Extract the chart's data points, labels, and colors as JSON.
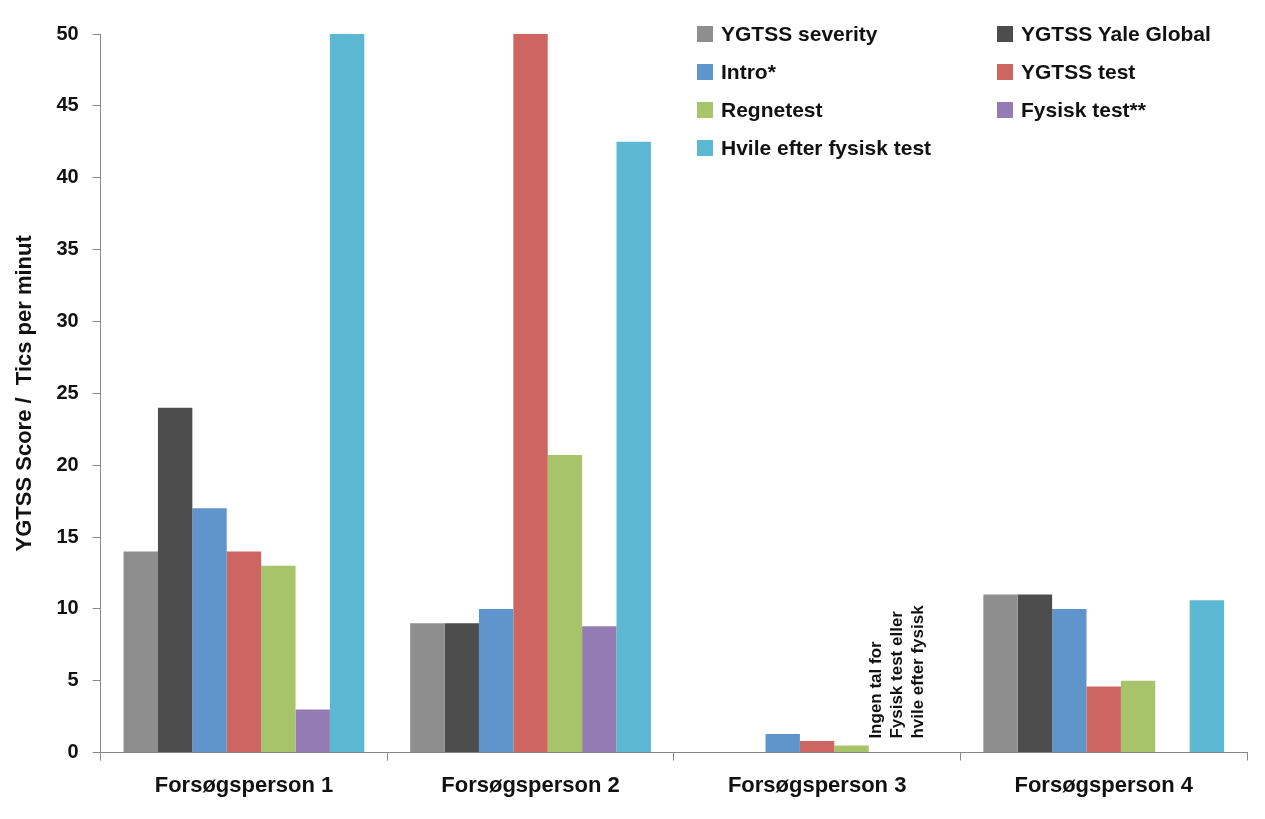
{
  "chart_data": {
    "type": "bar",
    "ylabel": "YGTSS Score /  Tics per minut",
    "categories": [
      "Forsøgsperson 1",
      "Forsøgsperson 2",
      "Forsøgsperson 3",
      "Forsøgsperson 4"
    ],
    "series": [
      {
        "name": "YGTSS severity",
        "color": "#8e8e8e",
        "values": [
          14,
          9,
          null,
          11
        ]
      },
      {
        "name": "YGTSS Yale Global",
        "color": "#4d4d4d",
        "values": [
          24,
          9,
          null,
          11
        ]
      },
      {
        "name": "Intro*",
        "color": "#5f95cb",
        "values": [
          17,
          10,
          1.3,
          10
        ]
      },
      {
        "name": "YGTSS test",
        "color": "#cd6560",
        "values": [
          14,
          50,
          0.8,
          4.6
        ]
      },
      {
        "name": "Regnetest",
        "color": "#a8c46b",
        "values": [
          13,
          20.7,
          0.5,
          5
        ]
      },
      {
        "name": "Fysisk test**",
        "color": "#937cb3",
        "values": [
          3,
          8.8,
          null,
          null
        ]
      },
      {
        "name": "Hvile efter fysisk test",
        "color": "#5cb8d2",
        "values": [
          50,
          42.5,
          null,
          10.6
        ]
      }
    ],
    "ylim": [
      0,
      50
    ],
    "yticks": [
      0,
      5,
      10,
      15,
      20,
      25,
      30,
      35,
      40,
      45,
      50
    ],
    "grid": false,
    "legend": "top right",
    "annotations": [
      "Ingen tal for Fysisk test eller hvile efter fysisk"
    ]
  }
}
